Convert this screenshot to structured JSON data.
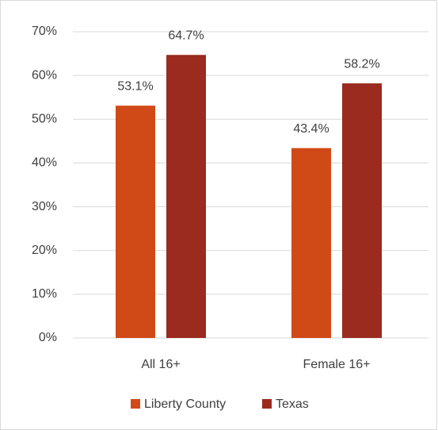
{
  "chart_data": {
    "type": "bar",
    "categories": [
      "All 16+",
      "Female 16+"
    ],
    "series": [
      {
        "name": "Liberty County",
        "color": "#d04a17",
        "values": [
          53.1,
          43.4
        ],
        "value_labels": [
          "53.1%",
          "43.4%"
        ]
      },
      {
        "name": "Texas",
        "color": "#9a2b1e",
        "values": [
          64.7,
          58.2
        ],
        "value_labels": [
          "64.7%",
          "58.2%"
        ]
      }
    ],
    "ylim": [
      0,
      70
    ],
    "yticks": [
      {
        "value": 0,
        "label": "0%"
      },
      {
        "value": 10,
        "label": "10%"
      },
      {
        "value": 20,
        "label": "20%"
      },
      {
        "value": 30,
        "label": "30%"
      },
      {
        "value": 40,
        "label": "40%"
      },
      {
        "value": 50,
        "label": "50%"
      },
      {
        "value": 60,
        "label": "60%"
      },
      {
        "value": 70,
        "label": "70%"
      }
    ],
    "grid": true,
    "legend": "bottom"
  }
}
